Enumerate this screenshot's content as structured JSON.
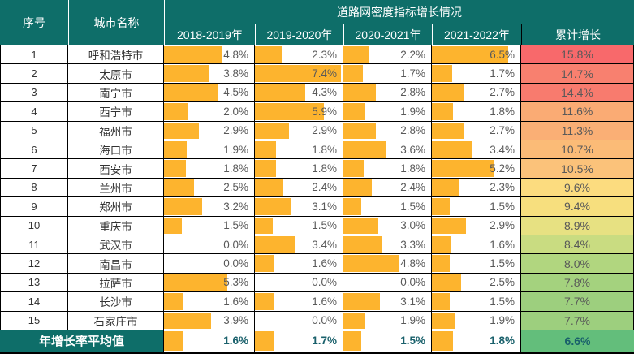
{
  "header": {
    "col_index": "序号",
    "col_city": "城市名称",
    "group_title": "道路网密度指标增长情况",
    "year_cols": [
      "2018-2019年",
      "2019-2020年",
      "2020-2021年",
      "2021-2022年"
    ],
    "col_cumulative": "累计增长"
  },
  "rows": [
    {
      "no": "1",
      "city": "呼和浩特市",
      "vals": [
        4.8,
        2.3,
        2.2,
        6.5
      ],
      "cum": "15.8%",
      "cum_color": "#F8696B"
    },
    {
      "no": "2",
      "city": "太原市",
      "vals": [
        3.8,
        7.4,
        1.7,
        1.7
      ],
      "cum": "14.7%",
      "cum_color": "#F8806F"
    },
    {
      "no": "3",
      "city": "南宁市",
      "vals": [
        4.5,
        4.3,
        2.8,
        2.7
      ],
      "cum": "14.4%",
      "cum_color": "#F87B6E"
    },
    {
      "no": "4",
      "city": "西宁市",
      "vals": [
        2.0,
        5.9,
        1.9,
        1.8
      ],
      "cum": "11.6%",
      "cum_color": "#FAAB74"
    },
    {
      "no": "5",
      "city": "福州市",
      "vals": [
        2.9,
        2.9,
        2.8,
        2.7
      ],
      "cum": "11.3%",
      "cum_color": "#FAAF75"
    },
    {
      "no": "6",
      "city": "海口市",
      "vals": [
        1.9,
        1.8,
        3.6,
        3.4
      ],
      "cum": "10.7%",
      "cum_color": "#FBBB77"
    },
    {
      "no": "7",
      "city": "西安市",
      "vals": [
        1.8,
        1.8,
        1.8,
        5.2
      ],
      "cum": "10.5%",
      "cum_color": "#FBC27A"
    },
    {
      "no": "8",
      "city": "兰州市",
      "vals": [
        2.5,
        2.4,
        2.4,
        2.3
      ],
      "cum": "9.6%",
      "cum_color": "#FCDC7F"
    },
    {
      "no": "9",
      "city": "郑州市",
      "vals": [
        3.2,
        3.1,
        1.5,
        1.5
      ],
      "cum": "9.4%",
      "cum_color": "#F7DF7E"
    },
    {
      "no": "10",
      "city": "重庆市",
      "vals": [
        1.5,
        1.5,
        3.0,
        2.9
      ],
      "cum": "8.9%",
      "cum_color": "#E7E182"
    },
    {
      "no": "11",
      "city": "武汉市",
      "vals": [
        0.0,
        3.4,
        3.3,
        1.6
      ],
      "cum": "8.4%",
      "cum_color": "#C9DC81"
    },
    {
      "no": "12",
      "city": "南昌市",
      "vals": [
        0.0,
        1.6,
        4.8,
        1.5
      ],
      "cum": "8.0%",
      "cum_color": "#B1D67F"
    },
    {
      "no": "13",
      "city": "拉萨市",
      "vals": [
        5.3,
        0.0,
        0.0,
        2.5
      ],
      "cum": "7.8%",
      "cum_color": "#A4D27E"
    },
    {
      "no": "14",
      "city": "长沙市",
      "vals": [
        1.6,
        1.6,
        3.1,
        1.5
      ],
      "cum": "7.7%",
      "cum_color": "#9DCF7E"
    },
    {
      "no": "15",
      "city": "石家庄市",
      "vals": [
        3.9,
        0.0,
        1.9,
        1.9
      ],
      "cum": "7.7%",
      "cum_color": "#9DCF7E"
    }
  ],
  "footer": {
    "label": "年增长率平均值",
    "values": [
      "1.6%",
      "1.7%",
      "1.5%",
      "1.8%"
    ],
    "vals": [
      1.6,
      1.7,
      1.5,
      1.8
    ],
    "cumulative": "6.6%",
    "cumulative_color": "#63BE7B"
  },
  "colors": {
    "header_teal": "#0E6E69",
    "bar_orange": "#FDB42E",
    "grid_border": "#000000",
    "value_text": "#595959",
    "footer_value_text": "#19606B",
    "scale_high_red": "#F8696B",
    "scale_mid_yellow": "#FCDC7F",
    "scale_low_green": "#63BE7B"
  },
  "chart_data": {
    "type": "table",
    "title": "道路网密度指标增长情况",
    "columns": [
      "序号",
      "城市名称",
      "2018-2019年",
      "2019-2020年",
      "2020-2021年",
      "2021-2022年",
      "累计增长"
    ],
    "rows": [
      [
        1,
        "呼和浩特市",
        4.8,
        2.3,
        2.2,
        6.5,
        15.8
      ],
      [
        2,
        "太原市",
        3.8,
        7.4,
        1.7,
        1.7,
        14.7
      ],
      [
        3,
        "南宁市",
        4.5,
        4.3,
        2.8,
        2.7,
        14.4
      ],
      [
        4,
        "西宁市",
        2.0,
        5.9,
        1.9,
        1.8,
        11.6
      ],
      [
        5,
        "福州市",
        2.9,
        2.9,
        2.8,
        2.7,
        11.3
      ],
      [
        6,
        "海口市",
        1.9,
        1.8,
        3.6,
        3.4,
        10.7
      ],
      [
        7,
        "西安市",
        1.8,
        1.8,
        1.8,
        5.2,
        10.5
      ],
      [
        8,
        "兰州市",
        2.5,
        2.4,
        2.4,
        2.3,
        9.6
      ],
      [
        9,
        "郑州市",
        3.2,
        3.1,
        1.5,
        1.5,
        9.4
      ],
      [
        10,
        "重庆市",
        1.5,
        1.5,
        3.0,
        2.9,
        8.9
      ],
      [
        11,
        "武汉市",
        0.0,
        3.4,
        3.3,
        1.6,
        8.4
      ],
      [
        12,
        "南昌市",
        0.0,
        1.6,
        4.8,
        1.5,
        8.0
      ],
      [
        13,
        "拉萨市",
        5.3,
        0.0,
        0.0,
        2.5,
        7.8
      ],
      [
        14,
        "长沙市",
        1.6,
        1.6,
        3.1,
        1.5,
        7.7
      ],
      [
        15,
        "石家庄市",
        3.9,
        0.0,
        1.9,
        1.9,
        7.7
      ]
    ],
    "footer_row": [
      "年增长率平均值",
      1.6,
      1.7,
      1.5,
      1.8,
      6.6
    ],
    "unit": "%",
    "bar_scale_max": 7.5,
    "data_bars": "orange bars in year columns, length proportional to value",
    "color_scale": "累计增长 column: red (high) → yellow → green (low)"
  }
}
